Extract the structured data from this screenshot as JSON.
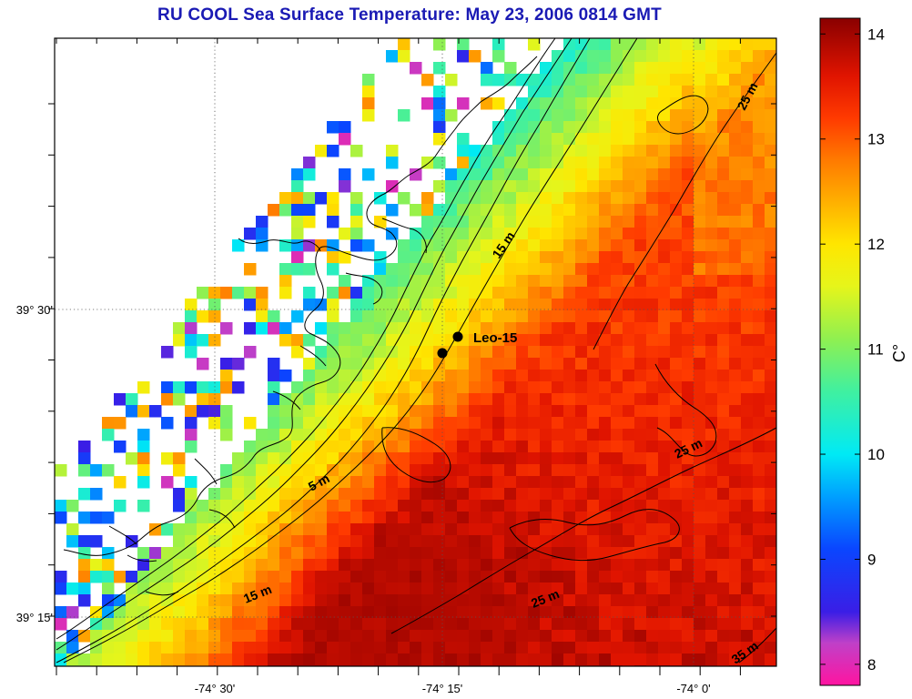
{
  "title": "RU COOL  Sea Surface Temperature:  May 23, 2006 0814 GMT",
  "map": {
    "lon_ticks": [
      {
        "value": -74.5,
        "label": "-74° 30'"
      },
      {
        "value": -74.25,
        "label": "-74° 15'"
      },
      {
        "value": -74.0,
        "label": "-74° 0'"
      }
    ],
    "lat_ticks": [
      {
        "value": 39.5,
        "label": "39° 30'"
      },
      {
        "value": 39.25,
        "label": "39° 15'"
      }
    ],
    "contour_labels": [
      "25 m",
      "15 m",
      "5 m",
      "25 m",
      "15 m",
      "25 m",
      "35 m"
    ],
    "station": {
      "name": "Leo-15"
    }
  },
  "colorbar": {
    "min": 7.8,
    "max": 14.15,
    "tick_labels": [
      "14",
      "13",
      "12",
      "11",
      "10",
      "9",
      "8"
    ],
    "unit": "C°",
    "stops": [
      {
        "v": 7.8,
        "c": "#ff14a0"
      },
      {
        "v": 8.2,
        "c": "#c040c8"
      },
      {
        "v": 8.5,
        "c": "#3a1ee6"
      },
      {
        "v": 9.1,
        "c": "#0a46ff"
      },
      {
        "v": 9.6,
        "c": "#00a0ff"
      },
      {
        "v": 10.0,
        "c": "#00eaf5"
      },
      {
        "v": 10.6,
        "c": "#40f0a0"
      },
      {
        "v": 11.1,
        "c": "#90f050"
      },
      {
        "v": 11.6,
        "c": "#e6f51a"
      },
      {
        "v": 12.0,
        "c": "#ffe600"
      },
      {
        "v": 12.4,
        "c": "#ffb000"
      },
      {
        "v": 12.8,
        "c": "#ff7a00"
      },
      {
        "v": 13.2,
        "c": "#ff3a00"
      },
      {
        "v": 13.6,
        "c": "#e01400"
      },
      {
        "v": 14.15,
        "c": "#8a0000"
      }
    ]
  }
}
